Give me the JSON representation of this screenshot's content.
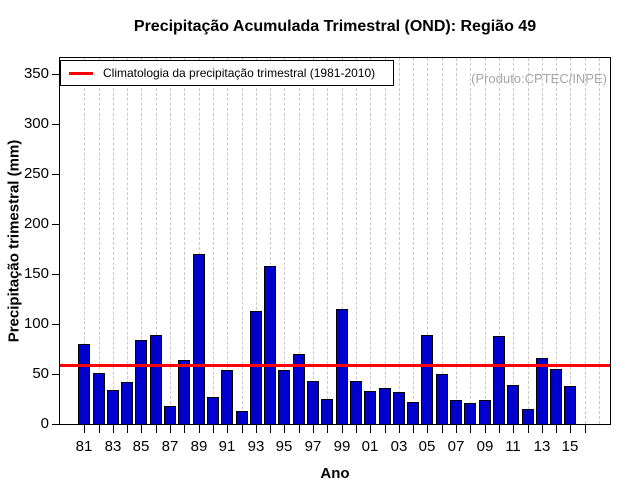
{
  "chart_data": {
    "type": "bar",
    "title": "Precipitação Acumulada Trimestral (OND): Região 49",
    "xlabel": "Ano",
    "ylabel": "Precipitação trimestral (mm)",
    "legend_label": "Climatologia da precipitação trimestral (1981-2010)",
    "legend_position": "top-left",
    "credit": "(Produto:CPTEC/INPE)",
    "years": [
      1981,
      1982,
      1983,
      1984,
      1985,
      1986,
      1987,
      1988,
      1989,
      1990,
      1991,
      1992,
      1993,
      1994,
      1995,
      1996,
      1997,
      1998,
      1999,
      2000,
      2001,
      2002,
      2003,
      2004,
      2005,
      2006,
      2007,
      2008,
      2009,
      2010,
      2011,
      2012,
      2013,
      2014,
      2015
    ],
    "values": [
      80,
      51,
      34,
      42,
      84,
      89,
      18,
      64,
      170,
      27,
      54,
      13,
      113,
      158,
      54,
      70,
      43,
      25,
      115,
      43,
      33,
      36,
      32,
      22,
      89,
      50,
      24,
      21,
      24,
      88,
      39,
      15,
      66,
      55,
      38
    ],
    "x_tick_labels": [
      "81",
      "83",
      "85",
      "87",
      "89",
      "91",
      "93",
      "95",
      "97",
      "99",
      "01",
      "03",
      "05",
      "07",
      "09",
      "11",
      "13",
      "15"
    ],
    "yticks": [
      0,
      50,
      100,
      150,
      200,
      250,
      300,
      350
    ],
    "ylim": [
      0,
      366
    ],
    "climatology_value": 59,
    "grid": "vertical-dashed",
    "colors": {
      "bar": "#0000CD",
      "bar_border": "#000000",
      "climatology_line": "#FF0000",
      "grid_line": "#C9C9C9",
      "credit_text": "#A6A6A6"
    }
  }
}
